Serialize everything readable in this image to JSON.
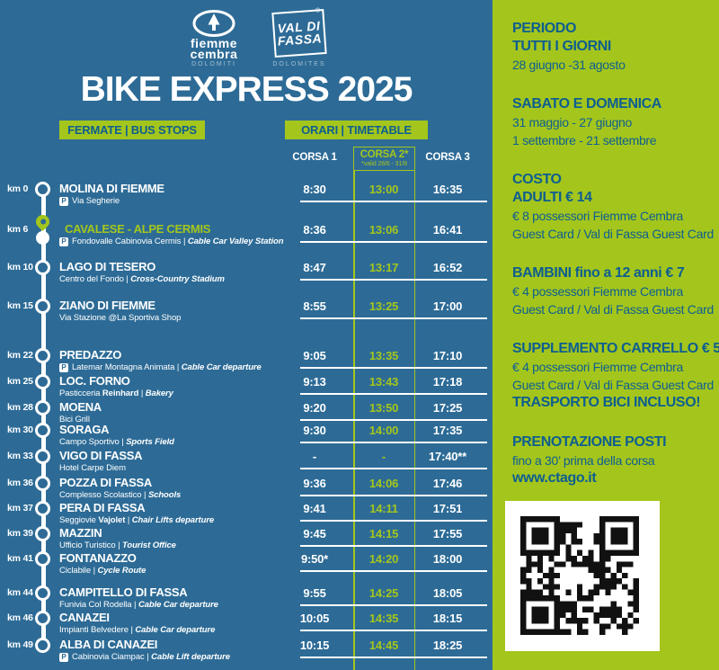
{
  "colors": {
    "panel_blue": "#2d6b96",
    "accent_green": "#a4c61c",
    "text_dark_blue": "#0e5e90"
  },
  "header": {
    "title": "BIKE EXPRESS 2025",
    "stops_button": "FERMATE | BUS STOPS",
    "timetable_button": "ORARI | TIMETABLE",
    "logo_fiemme": {
      "line1": "fiemme",
      "line2": "cembra",
      "sub": "DOLOMITI"
    },
    "logo_fassa": {
      "line1": "VAL DI",
      "line2": "FASSA",
      "reg": "®",
      "sub": "DOLOMITES"
    }
  },
  "columns": {
    "corsa1": "CORSA 1",
    "corsa2": "CORSA 2*",
    "corsa2_note": "*valid 28/6 - 31/8",
    "corsa3": "CORSA 3"
  },
  "stops": [
    {
      "km": "km 0",
      "name": "MOLINA DI FIEMME",
      "parking": true,
      "sub": "Via Segherie",
      "sub_bold": "",
      "sub_italic": "",
      "times": [
        "8:30",
        "13:00",
        "16:35"
      ],
      "highlight": false
    },
    {
      "km": "km 6",
      "name": "CAVALESE - ALPE CERMIS",
      "parking": true,
      "sub": "Fondovalle Cabinovia Cermis",
      "sub_bold": "",
      "sub_italic": "Cable Car Valley Station",
      "times": [
        "8:36",
        "13:06",
        "16:41"
      ],
      "highlight": true
    },
    {
      "km": "km 10",
      "name": "LAGO DI TESERO",
      "parking": false,
      "sub": "Centro del Fondo",
      "sub_bold": "",
      "sub_italic": "Cross-Country Stadium",
      "times": [
        "8:47",
        "13:17",
        "16:52"
      ],
      "highlight": false
    },
    {
      "km": "km 15",
      "name": "ZIANO DI FIEMME",
      "parking": false,
      "sub": "Via Stazione @La Sportiva Shop",
      "sub_bold": "",
      "sub_italic": "",
      "times": [
        "8:55",
        "13:25",
        "17:00"
      ],
      "highlight": false
    },
    {
      "km": "km 22",
      "name": "PREDAZZO",
      "parking": true,
      "sub": "Latemar Montagna Animata",
      "sub_bold": "",
      "sub_italic": "Cable Car departure",
      "times": [
        "9:05",
        "13:35",
        "17:10"
      ],
      "highlight": false
    },
    {
      "km": "km 25",
      "name": "LOC. FORNO",
      "parking": false,
      "sub": "Pasticceria",
      "sub_bold": "Reinhard",
      "sub_italic": "Bakery",
      "times": [
        "9:13",
        "13:43",
        "17:18"
      ],
      "highlight": false
    },
    {
      "km": "km 28",
      "name": "MOENA",
      "parking": false,
      "sub": "Bici Grill",
      "sub_bold": "",
      "sub_italic": "",
      "times": [
        "9:20",
        "13:50",
        "17:25"
      ],
      "highlight": false
    },
    {
      "km": "km 30",
      "name": "SORAGA",
      "parking": false,
      "sub": "Campo Sportivo",
      "sub_bold": "",
      "sub_italic": "Sports Field",
      "times": [
        "9:30",
        "14:00",
        "17:35"
      ],
      "highlight": false
    },
    {
      "km": "km 33",
      "name": "VIGO DI FASSA",
      "parking": false,
      "sub": "Hotel Carpe Diem",
      "sub_bold": "",
      "sub_italic": "",
      "times": [
        "-",
        "-",
        "17:40**"
      ],
      "highlight": false
    },
    {
      "km": "km 36",
      "name": "POZZA DI FASSA",
      "parking": false,
      "sub": "Complesso Scolastico",
      "sub_bold": "",
      "sub_italic": "Schools",
      "times": [
        "9:36",
        "14:06",
        "17:46"
      ],
      "highlight": false
    },
    {
      "km": "km 37",
      "name": "PERA DI FASSA",
      "parking": false,
      "sub": "Seggiovie",
      "sub_bold": "Vajolet",
      "sub_italic": "Chair Lifts departure",
      "times": [
        "9:41",
        "14:11",
        "17:51"
      ],
      "highlight": false
    },
    {
      "km": "km 39",
      "name": "MAZZIN",
      "parking": false,
      "sub": "Ufficio Turistico",
      "sub_bold": "",
      "sub_italic": "Tourist Office",
      "times": [
        "9:45",
        "14:15",
        "17:55"
      ],
      "highlight": false
    },
    {
      "km": "km 41",
      "name": "FONTANAZZO",
      "parking": false,
      "sub": "Ciclabile",
      "sub_bold": "",
      "sub_italic": "Cycle Route",
      "times": [
        "9:50*",
        "14:20",
        "18:00"
      ],
      "highlight": false
    },
    {
      "km": "km 44",
      "name": "CAMPITELLO DI FASSA",
      "parking": false,
      "sub": "Funivia Col Rodella",
      "sub_bold": "",
      "sub_italic": "Cable Car departure",
      "times": [
        "9:55",
        "14:25",
        "18:05"
      ],
      "highlight": false
    },
    {
      "km": "km 46",
      "name": "CANAZEI",
      "parking": false,
      "sub": "Impianti Belvedere",
      "sub_bold": "",
      "sub_italic": "Cable Car departure",
      "times": [
        "10:05",
        "14:35",
        "18:15"
      ],
      "highlight": false
    },
    {
      "km": "km 49",
      "name": "ALBA DI CANAZEI",
      "parking": true,
      "sub": "Cabinovia Ciampac",
      "sub_bold": "",
      "sub_italic": "Cable Lift departure",
      "times": [
        "10:15",
        "14:45",
        "18:25"
      ],
      "highlight": false
    }
  ],
  "info": {
    "sections": [
      {
        "lines": [
          {
            "t": "PERIODO",
            "b": 1
          },
          {
            "t": "TUTTI I GIORNI",
            "b": 1
          },
          {
            "t": "28 giugno -31 agosto",
            "b": 0
          }
        ]
      },
      {
        "lines": [
          {
            "t": "SABATO E DOMENICA",
            "b": 1
          },
          {
            "t": "31 maggio - 27 giugno",
            "b": 0
          },
          {
            "t": "1 settembre - 21 settembre",
            "b": 0
          }
        ]
      },
      {
        "lines": [
          {
            "t": "COSTO",
            "b": 1
          },
          {
            "t": "ADULTI € 14",
            "b": 1
          },
          {
            "t": "€ 8 possessori Fiemme Cembra",
            "b": 0
          },
          {
            "t": "Guest Card / Val di Fassa Guest Card",
            "b": 0
          }
        ]
      },
      {
        "lines": [
          {
            "t": "BAMBINI fino a 12 anni € 7",
            "b": 1
          },
          {
            "t": "€ 4 possessori Fiemme Cembra",
            "b": 0
          },
          {
            "t": "Guest Card / Val di Fassa Guest Card",
            "b": 0
          }
        ]
      },
      {
        "lines": [
          {
            "t": "SUPPLEMENTO CARRELLO € 5",
            "b": 1
          },
          {
            "t": "€ 4 possessori Fiemme Cembra",
            "b": 0
          },
          {
            "t": "Guest Card / Val di Fassa Guest Card",
            "b": 0
          },
          {
            "t": "TRASPORTO BICI INCLUSO!",
            "b": 1
          }
        ]
      },
      {
        "lines": [
          {
            "t": "PRENOTAZIONE POSTI",
            "b": 1
          },
          {
            "t": "fino a 30’ prima della corsa",
            "b": 0
          },
          {
            "t": "www.ctago.it",
            "b": 1
          }
        ]
      }
    ]
  }
}
